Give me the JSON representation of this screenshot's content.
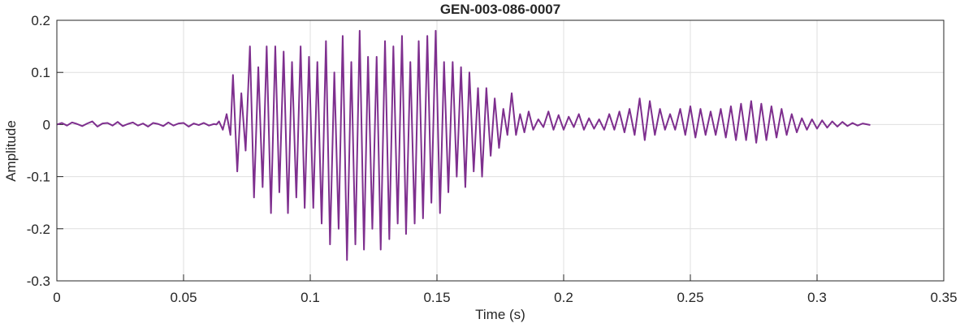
{
  "chart_data": {
    "type": "line",
    "title": "GEN-003-086-0007",
    "x_label": "Time (s)",
    "y_label": "Amplitude",
    "xlim": [
      0,
      0.35
    ],
    "xticks": [
      0,
      0.05,
      0.1,
      0.15,
      0.2,
      0.25,
      0.3,
      0.35
    ],
    "ylim": [
      -0.3,
      0.2
    ],
    "yticks": [
      -0.3,
      -0.2,
      -0.1,
      0,
      0.1,
      0.2
    ],
    "grid": true,
    "color": "#7e2f8e",
    "x": [
      0,
      0.002,
      0.004,
      0.006,
      0.008,
      0.01,
      0.012,
      0.014,
      0.016,
      0.018,
      0.02,
      0.022,
      0.024,
      0.026,
      0.028,
      0.03,
      0.032,
      0.034,
      0.036,
      0.038,
      0.04,
      0.042,
      0.044,
      0.046,
      0.048,
      0.05,
      0.052,
      0.054,
      0.056,
      0.058,
      0.06,
      0.062,
      0.063,
      0.064,
      0.0655,
      0.067,
      0.0685,
      0.0695,
      0.0712,
      0.0728,
      0.0745,
      0.0762,
      0.0778,
      0.0795,
      0.0812,
      0.0828,
      0.0845,
      0.0862,
      0.0878,
      0.0895,
      0.0912,
      0.0928,
      0.0945,
      0.0962,
      0.0978,
      0.0995,
      0.1012,
      0.1028,
      0.1045,
      0.1062,
      0.1078,
      0.1095,
      0.1112,
      0.1128,
      0.1145,
      0.1162,
      0.1178,
      0.1195,
      0.1212,
      0.1228,
      0.1245,
      0.1262,
      0.1278,
      0.1295,
      0.1312,
      0.1328,
      0.1345,
      0.1362,
      0.1378,
      0.1395,
      0.1412,
      0.1428,
      0.1445,
      0.1462,
      0.1478,
      0.1495,
      0.1512,
      0.1528,
      0.1545,
      0.1562,
      0.1578,
      0.1595,
      0.1612,
      0.1628,
      0.1645,
      0.1662,
      0.1678,
      0.1695,
      0.1712,
      0.1728,
      0.1745,
      0.1762,
      0.1778,
      0.1795,
      0.1812,
      0.1828,
      0.1845,
      0.1862,
      0.188,
      0.19,
      0.192,
      0.194,
      0.196,
      0.198,
      0.2,
      0.202,
      0.204,
      0.206,
      0.208,
      0.21,
      0.212,
      0.214,
      0.216,
      0.218,
      0.22,
      0.222,
      0.224,
      0.226,
      0.228,
      0.23,
      0.232,
      0.234,
      0.236,
      0.238,
      0.24,
      0.242,
      0.244,
      0.246,
      0.248,
      0.25,
      0.252,
      0.254,
      0.256,
      0.258,
      0.26,
      0.262,
      0.264,
      0.266,
      0.268,
      0.27,
      0.272,
      0.274,
      0.276,
      0.278,
      0.28,
      0.282,
      0.284,
      0.286,
      0.288,
      0.29,
      0.292,
      0.294,
      0.296,
      0.298,
      0.3,
      0.302,
      0.304,
      0.306,
      0.308,
      0.31,
      0.312,
      0.314,
      0.316,
      0.318,
      0.32,
      0.321
    ],
    "values": [
      0,
      0.003,
      -0.002,
      0.004,
      0.001,
      -0.003,
      0.002,
      0.006,
      -0.004,
      0.002,
      0.003,
      -0.002,
      0.005,
      -0.003,
      0.001,
      0.004,
      -0.002,
      0.002,
      -0.004,
      0.003,
      0.001,
      -0.003,
      0.004,
      -0.002,
      0.002,
      0.003,
      -0.004,
      0.002,
      -0.001,
      0.003,
      -0.002,
      0.001,
      0,
      0.006,
      -0.01,
      0.02,
      -0.02,
      0.095,
      -0.09,
      0.06,
      -0.05,
      0.15,
      -0.14,
      0.11,
      -0.12,
      0.15,
      -0.17,
      0.15,
      -0.13,
      0.14,
      -0.17,
      0.12,
      -0.14,
      0.15,
      -0.16,
      0.13,
      -0.16,
      0.12,
      -0.19,
      0.16,
      -0.23,
      0.1,
      -0.2,
      0.17,
      -0.26,
      0.12,
      -0.23,
      0.18,
      -0.24,
      0.13,
      -0.2,
      0.13,
      -0.24,
      0.16,
      -0.22,
      0.15,
      -0.19,
      0.17,
      -0.21,
      0.12,
      -0.19,
      0.16,
      -0.18,
      0.17,
      -0.15,
      0.18,
      -0.17,
      0.12,
      -0.13,
      0.12,
      -0.1,
      0.11,
      -0.12,
      0.1,
      -0.09,
      0.07,
      -0.1,
      0.07,
      -0.06,
      0.05,
      -0.045,
      0.03,
      -0.02,
      0.06,
      -0.02,
      0.02,
      -0.015,
      0.025,
      -0.01,
      0.01,
      -0.005,
      0.025,
      -0.01,
      0.018,
      -0.01,
      0.015,
      -0.005,
      0.02,
      -0.01,
      0.012,
      -0.008,
      0.01,
      -0.01,
      0.02,
      -0.01,
      0.025,
      -0.015,
      0.03,
      -0.02,
      0.05,
      -0.03,
      0.045,
      -0.02,
      0.03,
      -0.01,
      0.02,
      -0.01,
      0.03,
      -0.02,
      0.035,
      -0.025,
      0.03,
      -0.02,
      0.025,
      -0.02,
      0.03,
      -0.025,
      0.035,
      -0.03,
      0.04,
      -0.03,
      0.045,
      -0.035,
      0.04,
      -0.03,
      0.035,
      -0.025,
      0.03,
      -0.02,
      0.02,
      -0.015,
      0.012,
      -0.01,
      0.01,
      -0.008,
      0.008,
      -0.006,
      0.006,
      -0.004,
      0.005,
      -0.003,
      0.003,
      -0.002,
      0.002,
      0,
      -0.001
    ]
  }
}
